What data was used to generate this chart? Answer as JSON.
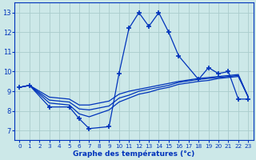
{
  "xlabel": "Graphe des températures (°c)",
  "bg_color": "#cce8e8",
  "grid_color": "#aacccc",
  "line_color": "#0033bb",
  "xlim": [
    -0.5,
    23.5
  ],
  "ylim": [
    6.5,
    13.5
  ],
  "yticks": [
    7,
    8,
    9,
    10,
    11,
    12,
    13
  ],
  "xticks": [
    0,
    1,
    2,
    3,
    4,
    5,
    6,
    7,
    8,
    9,
    10,
    11,
    12,
    13,
    14,
    15,
    16,
    17,
    18,
    19,
    20,
    21,
    22,
    23
  ],
  "line_top_x": [
    0,
    1,
    3,
    5,
    6,
    7,
    9,
    10,
    11,
    12,
    13,
    14,
    15,
    16,
    18,
    19,
    20,
    21,
    22,
    23
  ],
  "line_top_y": [
    9.2,
    9.3,
    8.2,
    8.2,
    7.6,
    7.1,
    7.2,
    9.9,
    12.2,
    13.0,
    12.3,
    13.0,
    12.0,
    10.8,
    9.6,
    10.2,
    9.9,
    10.0,
    8.6,
    8.6
  ],
  "line_mid1_x": [
    0,
    1,
    3,
    5,
    6,
    7,
    9,
    10,
    11,
    12,
    13,
    14,
    15,
    16,
    18,
    19,
    20,
    21,
    22,
    23
  ],
  "line_mid1_y": [
    9.2,
    9.3,
    8.7,
    8.6,
    8.3,
    8.3,
    8.5,
    8.85,
    9.0,
    9.1,
    9.2,
    9.3,
    9.4,
    9.5,
    9.65,
    9.7,
    9.75,
    9.8,
    9.85,
    8.7
  ],
  "line_mid2_x": [
    0,
    1,
    3,
    5,
    6,
    7,
    9,
    10,
    11,
    12,
    13,
    14,
    15,
    16,
    18,
    19,
    20,
    21,
    22,
    23
  ],
  "line_mid2_y": [
    9.2,
    9.3,
    8.55,
    8.45,
    8.1,
    8.05,
    8.25,
    8.65,
    8.8,
    9.0,
    9.1,
    9.2,
    9.3,
    9.45,
    9.6,
    9.65,
    9.7,
    9.75,
    9.8,
    8.7
  ],
  "line_bot_x": [
    0,
    1,
    3,
    5,
    6,
    7,
    9,
    10,
    11,
    12,
    13,
    14,
    15,
    16,
    18,
    19,
    20,
    21,
    22,
    23
  ],
  "line_bot_y": [
    9.2,
    9.3,
    8.4,
    8.3,
    7.85,
    7.7,
    8.05,
    8.45,
    8.65,
    8.85,
    8.95,
    9.1,
    9.2,
    9.35,
    9.5,
    9.55,
    9.65,
    9.7,
    9.75,
    8.7
  ]
}
